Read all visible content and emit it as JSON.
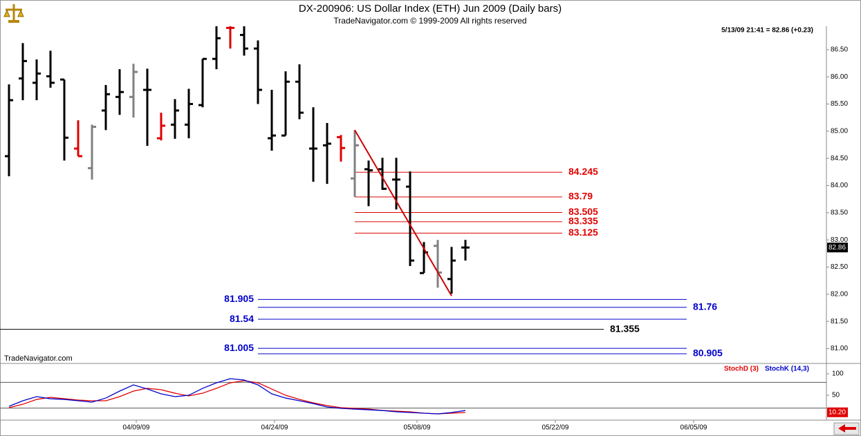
{
  "header": {
    "title": "DX-200906:  US Dollar Index (ETH) Jun 2009  (Daily bars)",
    "subtitle": "TradeNavigator.com © 1999-2009 All rights reserved",
    "info": "5/13/09 21:41 = 82.86 (+0.23)",
    "watermark": "TradeNavigator.com"
  },
  "chart_data": [
    {
      "type": "ohlc",
      "opens": [
        84.54,
        85.97,
        85.89,
        86.01,
        85.95,
        84.68,
        84.32,
        85.38,
        85.63,
        85.63,
        85.76,
        84.87,
        85.12,
        85.12,
        85.48,
        86.33,
        86.9,
        86.77,
        86.52,
        84.87,
        84.92,
        85.91,
        84.68,
        84.74,
        84.89,
        84.13,
        84.3,
        84.3,
        84.11,
        83.98,
        82.39,
        82.89,
        82.28,
        82.86
      ],
      "highs": [
        85.86,
        86.62,
        86.32,
        86.48,
        85.95,
        85.2,
        85.12,
        85.85,
        86.14,
        86.24,
        86.15,
        85.34,
        85.59,
        85.78,
        86.33,
        86.93,
        86.93,
        86.93,
        86.67,
        85.76,
        86.1,
        86.23,
        85.44,
        85.15,
        84.93,
        85.02,
        84.46,
        84.51,
        84.51,
        84.26,
        82.96,
        83.0,
        82.87,
        83.0
      ],
      "lows": [
        84.17,
        85.57,
        85.57,
        85.8,
        84.46,
        84.54,
        84.11,
        85.02,
        85.3,
        85.25,
        84.73,
        84.83,
        84.86,
        84.87,
        85.44,
        86.14,
        86.52,
        86.39,
        85.5,
        84.64,
        84.92,
        85.22,
        84.07,
        84.03,
        84.44,
        83.79,
        83.62,
        83.92,
        83.56,
        82.52,
        82.39,
        82.12,
        82.01,
        82.62
      ],
      "closes": [
        85.57,
        86.29,
        86.06,
        85.89,
        84.88,
        84.54,
        85.08,
        85.68,
        85.72,
        86.09,
        85.76,
        85.1,
        85.38,
        85.5,
        86.33,
        86.71,
        86.9,
        86.52,
        85.76,
        84.92,
        85.91,
        85.34,
        84.68,
        84.77,
        84.69,
        84.74,
        84.28,
        83.94,
        84.11,
        82.62,
        82.77,
        82.4,
        82.62,
        82.86
      ],
      "colors": [
        "#000",
        "#000",
        "#000",
        "#000",
        "#000",
        "#e00000",
        "#808080",
        "#000",
        "#000",
        "#808080",
        "#000",
        "#e00000",
        "#000",
        "#000",
        "#000",
        "#000",
        "#e00000",
        "#000",
        "#000",
        "#000",
        "#000",
        "#000",
        "#000",
        "#000",
        "#e00000",
        "#808080",
        "#000",
        "#000",
        "#000",
        "#000",
        "#000",
        "#808080",
        "#000",
        "#000"
      ],
      "xlim": [
        -0.65,
        59.1
      ],
      "ylim": [
        80.74,
        86.93
      ],
      "xticks": [
        {
          "value": 9.2,
          "label": "04/09/09"
        },
        {
          "value": 19.2,
          "label": "04/24/09"
        },
        {
          "value": 29.5,
          "label": "05/08/09"
        },
        {
          "value": 39.5,
          "label": "05/22/09"
        },
        {
          "value": 49.5,
          "label": "06/05/09"
        }
      ],
      "yticks": [
        {
          "value": 81,
          "label": "81.00"
        },
        {
          "value": 81.5,
          "label": "81.50"
        },
        {
          "value": 82,
          "label": "82.00"
        },
        {
          "value": 82.5,
          "label": "82.50"
        },
        {
          "value": 83,
          "label": "83.00"
        },
        {
          "value": 83.5,
          "label": "83.50"
        },
        {
          "value": 84,
          "label": "84.00"
        },
        {
          "value": 84.5,
          "label": "84.50"
        },
        {
          "value": 85,
          "label": "85.00"
        },
        {
          "value": 85.5,
          "label": "85.50"
        },
        {
          "value": 86,
          "label": "86.00"
        },
        {
          "value": 86.5,
          "label": "86.50"
        }
      ],
      "last_price": 82.86,
      "trendline": {
        "x": [
          25,
          32
        ],
        "y": [
          85.02,
          81.97
        ],
        "color": "#cc0000"
      },
      "levels": [
        {
          "value": 84.245,
          "color": "#e00000",
          "x_start": 25,
          "x_end": 40,
          "label_side": "right"
        },
        {
          "value": 83.79,
          "color": "#e00000",
          "x_start": 25,
          "x_end": 40,
          "label_side": "right"
        },
        {
          "value": 83.505,
          "color": "#e00000",
          "x_start": 25,
          "x_end": 40,
          "label_side": "right"
        },
        {
          "value": 83.335,
          "color": "#e00000",
          "x_start": 25,
          "x_end": 40,
          "label_side": "right"
        },
        {
          "value": 83.125,
          "color": "#e00000",
          "x_start": 25,
          "x_end": 40,
          "label_side": "right"
        },
        {
          "value": 81.905,
          "color": "#0000cc",
          "x_start": 18,
          "x_end": 49,
          "label_side": "left"
        },
        {
          "value": 81.76,
          "color": "#0000cc",
          "x_start": 18,
          "x_end": 49,
          "label_side": "right"
        },
        {
          "value": 81.54,
          "color": "#0000cc",
          "x_start": 18,
          "x_end": 49,
          "label_side": "left"
        },
        {
          "value": 81.355,
          "color": "#000000",
          "x_start": -0.65,
          "x_end": 43,
          "label_side": "right"
        },
        {
          "value": 81.005,
          "color": "#0000cc",
          "x_start": 18,
          "x_end": 49,
          "label_side": "left"
        },
        {
          "value": 80.905,
          "color": "#0000cc",
          "x_start": 18,
          "x_end": 49,
          "label_side": "right"
        }
      ]
    },
    {
      "type": "line",
      "series": [
        {
          "name": "StochD (3)",
          "color": "#e00000",
          "values": [
            21.0,
            29.0,
            40.3,
            45.2,
            41.9,
            38.7,
            37.1,
            37.1,
            46.8,
            59.7,
            66.1,
            62.9,
            54.8,
            48.4,
            54.8,
            66.1,
            79.0,
            83.9,
            79.0,
            64.5,
            50.0,
            40.3,
            32.3,
            25.8,
            21.0,
            19.4,
            17.7,
            14.5,
            12.9,
            11.3,
            8.1,
            6.5,
            8.1,
            9.7
          ]
        },
        {
          "name": "StochK (14,3)",
          "color": "#0000cc",
          "values": [
            24.2,
            37.1,
            46.8,
            41.9,
            40.3,
            37.1,
            33.9,
            43.5,
            59.7,
            74.2,
            64.5,
            53.2,
            46.8,
            50.0,
            66.1,
            79.0,
            88.7,
            85.5,
            74.2,
            53.2,
            43.5,
            37.1,
            30.6,
            22.6,
            19.4,
            17.7,
            16.1,
            14.5,
            11.3,
            9.7,
            8.1,
            6.5,
            9.7,
            14.5
          ]
        }
      ],
      "ylim": [
        -8,
        121
      ],
      "yticks": [
        50,
        100
      ],
      "hlines": [
        20,
        80
      ],
      "last_value": {
        "value": 10.2,
        "label": "10.20"
      }
    }
  ]
}
